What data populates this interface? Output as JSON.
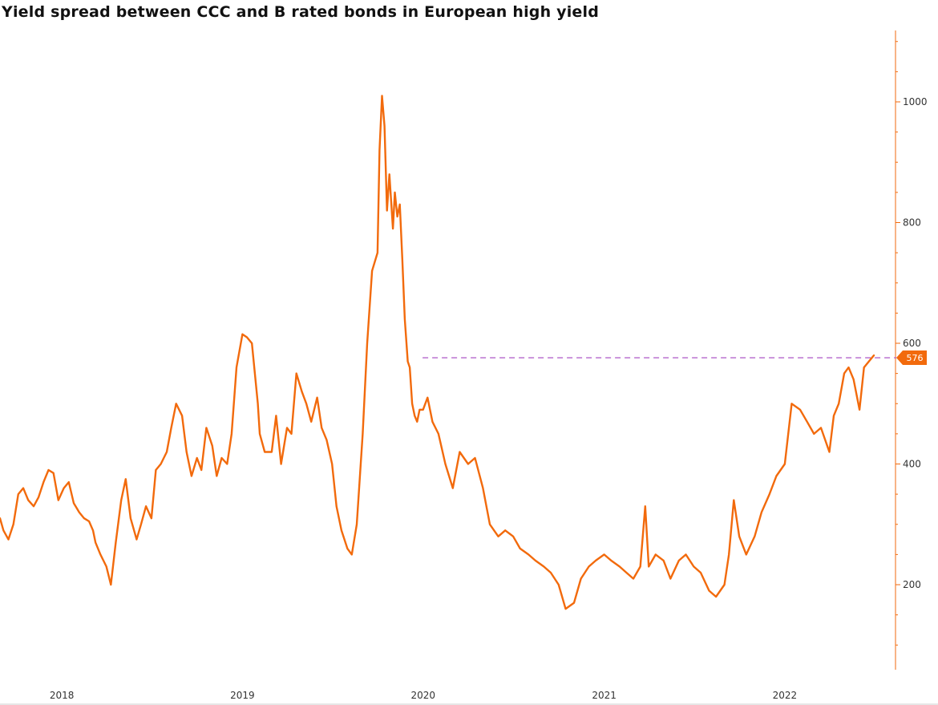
{
  "chart_data": {
    "type": "line",
    "title": "Yield spread between CCC and B rated bonds in European high yield",
    "xlabel": "",
    "ylabel": "",
    "x_ticks": [
      "2018",
      "2019",
      "2020",
      "2021",
      "2022"
    ],
    "y_ticks": [
      200,
      400,
      600,
      800,
      1000
    ],
    "ylim": [
      50,
      1120
    ],
    "xlim": [
      "2017-08-29",
      "2022-06-30"
    ],
    "y_axis_position": "right",
    "grid": false,
    "colors": {
      "line": "#f26a0c",
      "axis": "#f26a0c",
      "reference_line": "#b366cc",
      "marker_fill": "#f26a0c",
      "marker_text": "#ffffff"
    },
    "current_value_label": "576",
    "reference_line": {
      "value": 576,
      "from": "2019-12-31",
      "style": "dashed"
    },
    "series": [
      {
        "x": [
          "2017-08-29",
          "2017-09-05",
          "2017-09-15",
          "2017-09-25",
          "2017-10-05",
          "2017-10-15",
          "2017-10-25",
          "2017-11-05",
          "2017-11-15",
          "2017-11-25",
          "2017-12-05",
          "2017-12-15",
          "2017-12-25",
          "2018-01-05",
          "2018-01-15",
          "2018-01-25",
          "2018-02-05",
          "2018-02-15",
          "2018-02-25",
          "2018-03-05",
          "2018-03-10",
          "2018-03-20",
          "2018-04-01",
          "2018-04-10",
          "2018-04-20",
          "2018-05-01",
          "2018-05-10",
          "2018-05-20",
          "2018-06-01",
          "2018-06-10",
          "2018-06-20",
          "2018-07-01",
          "2018-07-10",
          "2018-07-20",
          "2018-08-01",
          "2018-08-10",
          "2018-08-20",
          "2018-09-01",
          "2018-09-10",
          "2018-09-20",
          "2018-10-01",
          "2018-10-10",
          "2018-10-20",
          "2018-11-01",
          "2018-11-10",
          "2018-11-20",
          "2018-12-01",
          "2018-12-10",
          "2018-12-20",
          "2019-01-01",
          "2019-01-10",
          "2019-01-20",
          "2019-02-01",
          "2019-02-05",
          "2019-02-15",
          "2019-03-01",
          "2019-03-10",
          "2019-03-20",
          "2019-04-01",
          "2019-04-10",
          "2019-04-20",
          "2019-05-01",
          "2019-05-10",
          "2019-05-20",
          "2019-06-01",
          "2019-06-10",
          "2019-06-20",
          "2019-07-01",
          "2019-07-10",
          "2019-07-20",
          "2019-08-01",
          "2019-08-10",
          "2019-08-20",
          "2019-09-01",
          "2019-09-10",
          "2019-09-20",
          "2019-10-01",
          "2019-10-05",
          "2019-10-10",
          "2019-10-15",
          "2019-10-20",
          "2019-10-25",
          "2019-11-01",
          "2019-11-05",
          "2019-11-10",
          "2019-11-15",
          "2019-11-20",
          "2019-11-25",
          "2019-12-01",
          "2019-12-05",
          "2019-12-10",
          "2019-12-15",
          "2019-12-20",
          "2019-12-25",
          "2020-01-01",
          "2020-01-10",
          "2020-01-20",
          "2020-02-01",
          "2020-02-15",
          "2020-03-01",
          "2020-03-15",
          "2020-04-01",
          "2020-04-15",
          "2020-05-01",
          "2020-05-15",
          "2020-06-01",
          "2020-06-15",
          "2020-07-01",
          "2020-07-15",
          "2020-08-01",
          "2020-08-15",
          "2020-09-01",
          "2020-09-15",
          "2020-10-01",
          "2020-10-15",
          "2020-11-01",
          "2020-11-15",
          "2020-12-01",
          "2020-12-15",
          "2021-01-01",
          "2021-01-15",
          "2021-02-01",
          "2021-02-15",
          "2021-03-01",
          "2021-03-15",
          "2021-03-25",
          "2021-04-01",
          "2021-04-15",
          "2021-05-01",
          "2021-05-15",
          "2021-06-01",
          "2021-06-15",
          "2021-07-01",
          "2021-07-15",
          "2021-08-01",
          "2021-08-15",
          "2021-09-01",
          "2021-09-10",
          "2021-09-20",
          "2021-10-01",
          "2021-10-15",
          "2021-11-01",
          "2021-11-15",
          "2021-12-01",
          "2021-12-15",
          "2022-01-01",
          "2022-01-15",
          "2022-02-01",
          "2022-02-15",
          "2022-03-01",
          "2022-03-15",
          "2022-04-01",
          "2022-04-10",
          "2022-04-20",
          "2022-05-01",
          "2022-05-10",
          "2022-05-20",
          "2022-06-01",
          "2022-06-10",
          "2022-06-20",
          "2022-06-30"
        ],
        "y": [
          310,
          290,
          275,
          300,
          350,
          360,
          340,
          330,
          345,
          370,
          390,
          385,
          340,
          360,
          370,
          335,
          320,
          310,
          305,
          290,
          270,
          250,
          230,
          200,
          270,
          340,
          375,
          310,
          275,
          300,
          330,
          310,
          390,
          400,
          420,
          460,
          500,
          480,
          420,
          380,
          410,
          390,
          460,
          430,
          380,
          410,
          400,
          450,
          560,
          615,
          610,
          600,
          500,
          450,
          420,
          420,
          480,
          400,
          460,
          450,
          550,
          520,
          500,
          470,
          510,
          460,
          440,
          400,
          330,
          290,
          260,
          250,
          300,
          450,
          600,
          720,
          750,
          920,
          1010,
          960,
          820,
          880,
          790,
          850,
          810,
          830,
          740,
          640,
          570,
          560,
          500,
          480,
          470,
          490,
          490,
          510,
          470,
          450,
          400,
          360,
          420,
          400,
          410,
          360,
          300,
          280,
          290,
          280,
          260,
          250,
          240,
          230,
          220,
          200,
          160,
          170,
          210,
          230,
          240,
          250,
          240,
          230,
          220,
          210,
          230,
          330,
          230,
          250,
          240,
          210,
          240,
          250,
          230,
          220,
          190,
          180,
          200,
          250,
          340,
          280,
          250,
          280,
          320,
          350,
          380,
          400,
          500,
          490,
          470,
          450,
          460,
          420,
          480,
          500,
          550,
          560,
          540,
          490,
          560,
          570,
          580
        ]
      }
    ]
  }
}
